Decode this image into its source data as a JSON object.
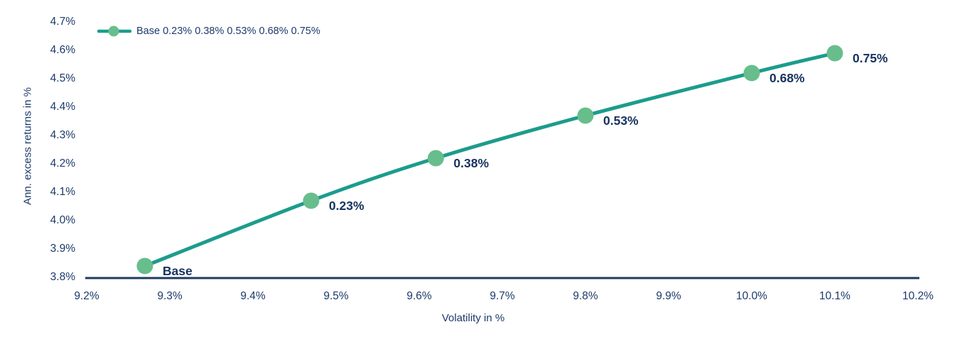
{
  "colors": {
    "text": "#1C3A6A",
    "text_dark": "#16335F",
    "axis_line": "#1F3A5F",
    "series_line": "#1C9C8C",
    "marker": "#67BE8C",
    "background": "#FFFFFF"
  },
  "chart_data": {
    "type": "line",
    "title": "",
    "xlabel": "Volatility in %",
    "ylabel": "Ann. excess returns in %",
    "xlim": [
      9.2,
      10.2
    ],
    "ylim": [
      3.8,
      4.7
    ],
    "grid": false,
    "x_ticks": [
      "9.2%",
      "9.3%",
      "9.4%",
      "9.5%",
      "9.6%",
      "9.7%",
      "9.8%",
      "9.9%",
      "10.0%",
      "10.1%",
      "10.2%"
    ],
    "y_ticks": [
      "3.8%",
      "3.9%",
      "4.0%",
      "4.1%",
      "4.2%",
      "4.3%",
      "4.4%",
      "4.5%",
      "4.6%",
      "4.7%"
    ],
    "legend": {
      "position": "top-left",
      "label": "Base 0.23% 0.38% 0.53% 0.68% 0.75%"
    },
    "series": [
      {
        "name": "Base 0.23% 0.38% 0.53% 0.68% 0.75%",
        "points": [
          {
            "x": 9.27,
            "y": 3.84,
            "label": "Base"
          },
          {
            "x": 9.47,
            "y": 4.07,
            "label": "0.23%"
          },
          {
            "x": 9.62,
            "y": 4.22,
            "label": "0.38%"
          },
          {
            "x": 9.8,
            "y": 4.37,
            "label": "0.53%"
          },
          {
            "x": 10.0,
            "y": 4.52,
            "label": "0.68%"
          },
          {
            "x": 10.1,
            "y": 4.59,
            "label": "0.75%"
          }
        ]
      }
    ]
  }
}
